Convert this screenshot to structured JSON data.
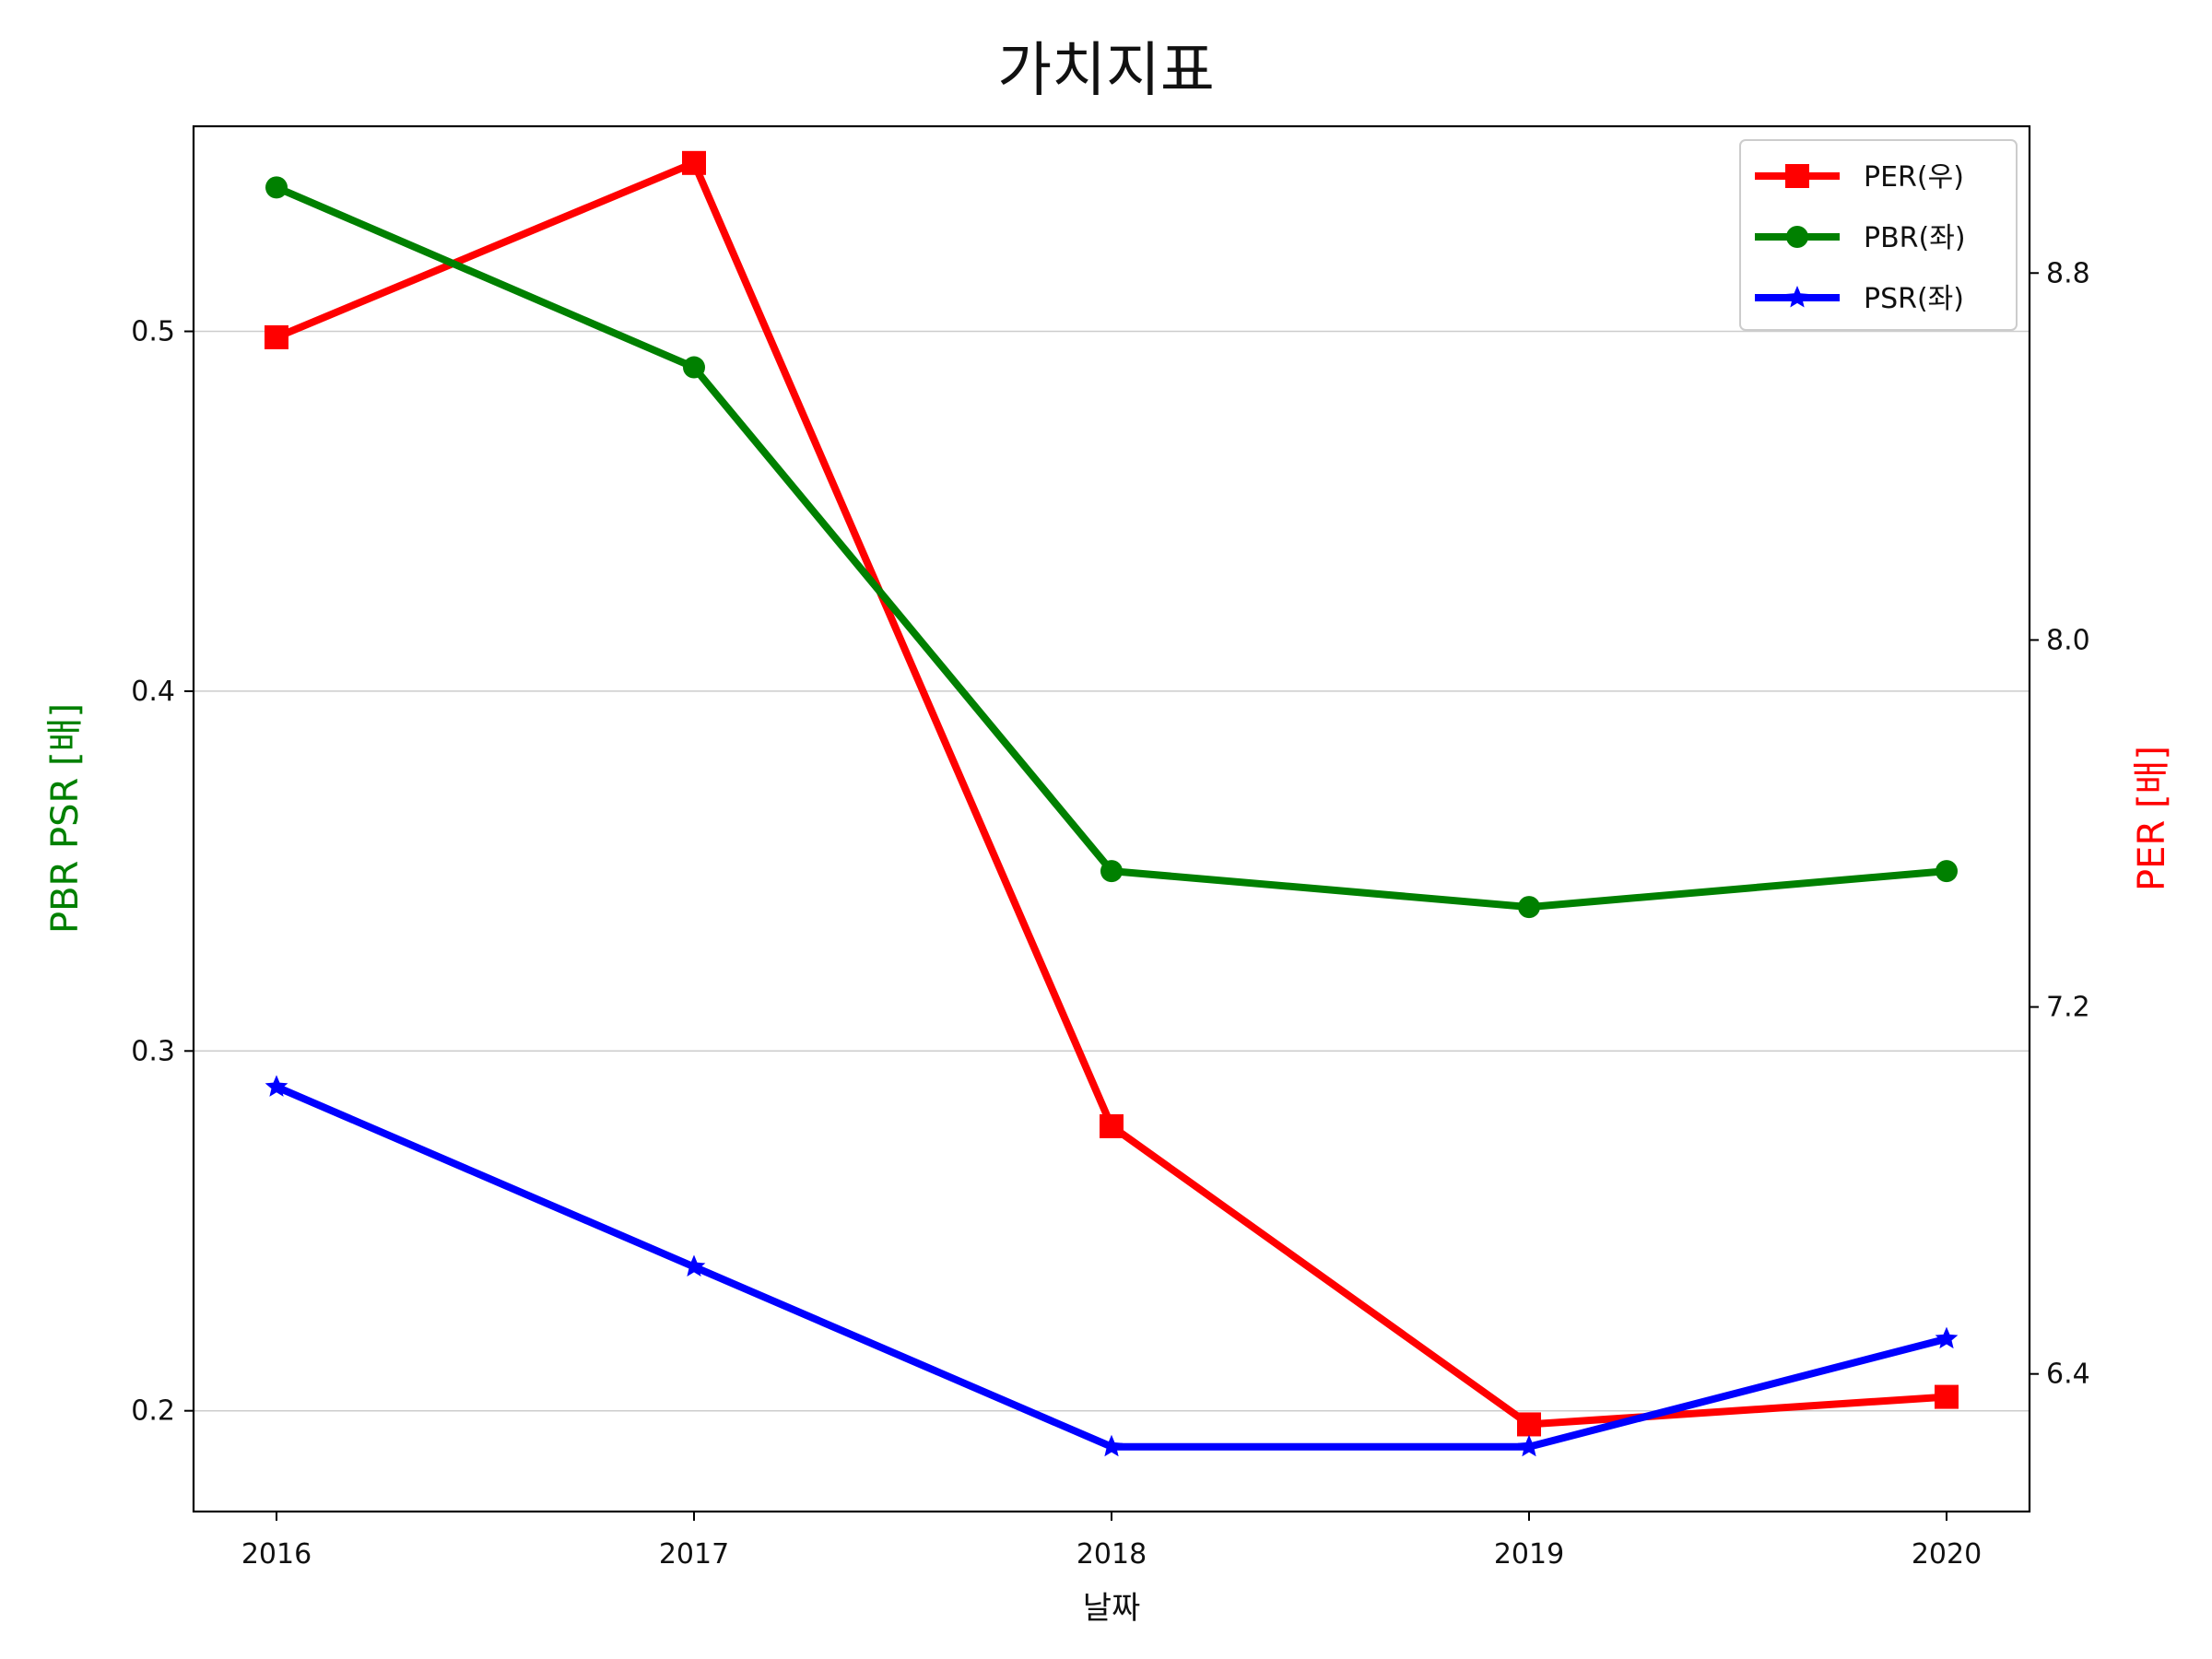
{
  "chart_data": {
    "type": "line",
    "title": "가치지표",
    "xlabel": "날짜",
    "ylabel_left": "PBR PSR [배]",
    "ylabel_right": "PER [배]",
    "categories": [
      "2016",
      "2017",
      "2018",
      "2019",
      "2020"
    ],
    "left_axis": {
      "ylim": [
        0.172,
        0.557
      ],
      "ticks": [
        "0.2",
        "0.3",
        "0.4",
        "0.5"
      ],
      "color": "#008000"
    },
    "right_axis": {
      "ylim": [
        6.1,
        9.12
      ],
      "ticks": [
        "6.4",
        "7.2",
        "8.0",
        "8.8"
      ],
      "color": "#ff0000"
    },
    "grid": "horizontal (left axis)",
    "legend_position": "upper right",
    "series": [
      {
        "name": "PER(우)",
        "axis": "right",
        "color": "#ff0000",
        "marker": "square",
        "values": [
          8.66,
          9.04,
          6.94,
          6.29,
          6.35
        ]
      },
      {
        "name": "PBR(좌)",
        "axis": "left",
        "color": "#008000",
        "marker": "circle",
        "values": [
          0.54,
          0.49,
          0.35,
          0.34,
          0.35
        ]
      },
      {
        "name": "PSR(좌)",
        "axis": "left",
        "color": "#0000ff",
        "marker": "star",
        "values": [
          0.29,
          0.24,
          0.19,
          0.19,
          0.22
        ]
      }
    ]
  }
}
